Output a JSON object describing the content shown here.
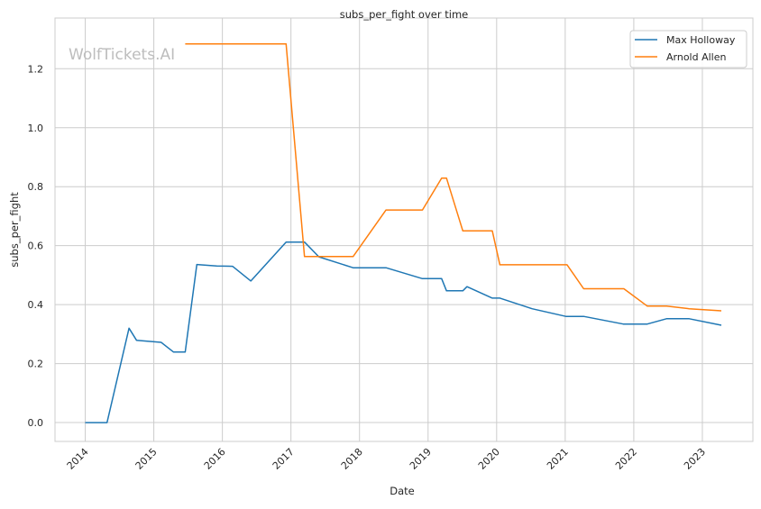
{
  "chart_data": {
    "type": "line",
    "title": "subs_per_fight over time",
    "xlabel": "Date",
    "ylabel": "subs_per_fight",
    "watermark": "WolfTickets.AI",
    "xlim": [
      "2013-07-24",
      "2023-09-27"
    ],
    "ylim": [
      -0.064,
      1.372
    ],
    "x_ticks": [
      "2014",
      "2015",
      "2016",
      "2017",
      "2018",
      "2019",
      "2020",
      "2021",
      "2022",
      "2023"
    ],
    "y_ticks": [
      "0.0",
      "0.2",
      "0.4",
      "0.6",
      "0.8",
      "1.0",
      "1.2"
    ],
    "grid": true,
    "legend_position": "top-right",
    "series": [
      {
        "name": "Max Holloway",
        "color": "#1f77b4",
        "points": [
          [
            "2014-01-01",
            0.0
          ],
          [
            "2014-04-27",
            0.0
          ],
          [
            "2014-08-22",
            0.32
          ],
          [
            "2014-10-01",
            0.279
          ],
          [
            "2015-02-09",
            0.272
          ],
          [
            "2015-04-16",
            0.239
          ],
          [
            "2015-06-17",
            0.239
          ],
          [
            "2015-08-18",
            0.536
          ],
          [
            "2015-12-02",
            0.531
          ],
          [
            "2016-02-24",
            0.53
          ],
          [
            "2016-06-01",
            0.48
          ],
          [
            "2016-12-06",
            0.612
          ],
          [
            "2017-03-14",
            0.612
          ],
          [
            "2017-05-30",
            0.562
          ],
          [
            "2017-11-28",
            0.525
          ],
          [
            "2018-05-22",
            0.525
          ],
          [
            "2018-12-02",
            0.488
          ],
          [
            "2019-03-14",
            0.488
          ],
          [
            "2019-04-09",
            0.447
          ],
          [
            "2019-07-05",
            0.447
          ],
          [
            "2019-07-27",
            0.461
          ],
          [
            "2019-12-09",
            0.422
          ],
          [
            "2020-01-18",
            0.422
          ],
          [
            "2020-07-08",
            0.386
          ],
          [
            "2021-01-04",
            0.36
          ],
          [
            "2021-04-09",
            0.36
          ],
          [
            "2021-11-06",
            0.334
          ],
          [
            "2022-03-14",
            0.334
          ],
          [
            "2022-06-24",
            0.352
          ],
          [
            "2022-10-23",
            0.352
          ],
          [
            "2023-04-12",
            0.33
          ]
        ]
      },
      {
        "name": "Arnold Allen",
        "color": "#ff7f0e",
        "points": [
          [
            "2015-06-17",
            1.284
          ],
          [
            "2016-12-06",
            1.284
          ],
          [
            "2017-03-14",
            0.563
          ],
          [
            "2017-11-28",
            0.563
          ],
          [
            "2018-05-22",
            0.721
          ],
          [
            "2018-12-02",
            0.721
          ],
          [
            "2019-03-14",
            0.829
          ],
          [
            "2019-04-09",
            0.829
          ],
          [
            "2019-07-05",
            0.65
          ],
          [
            "2019-12-09",
            0.65
          ],
          [
            "2020-01-18",
            0.535
          ],
          [
            "2021-01-11",
            0.535
          ],
          [
            "2021-04-09",
            0.454
          ],
          [
            "2021-11-09",
            0.454
          ],
          [
            "2022-03-14",
            0.395
          ],
          [
            "2022-06-24",
            0.395
          ],
          [
            "2022-10-23",
            0.386
          ],
          [
            "2023-04-12",
            0.379
          ]
        ]
      }
    ]
  }
}
